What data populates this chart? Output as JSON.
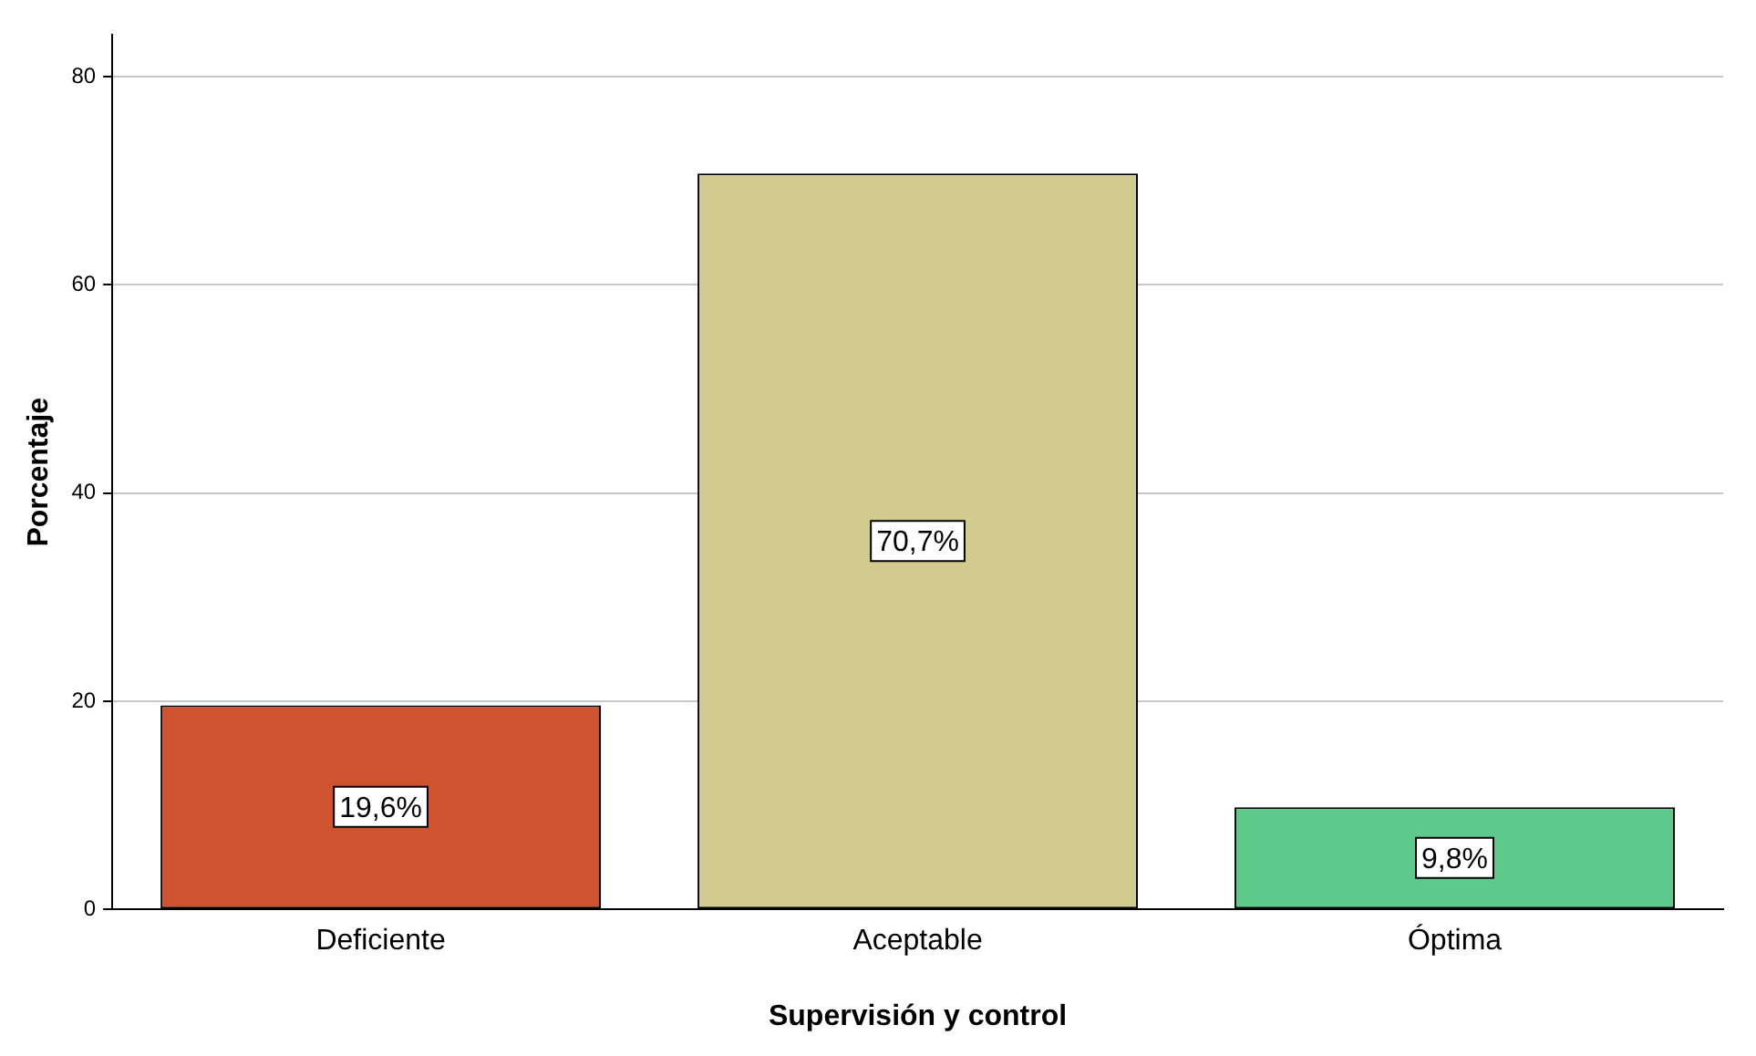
{
  "chart_data": {
    "type": "bar",
    "xlabel": "Supervisión y control",
    "ylabel": "Porcentaje",
    "categories": [
      "Deficiente",
      "Aceptable",
      "Óptima"
    ],
    "values": [
      19.6,
      70.7,
      9.8
    ],
    "colors": [
      "#d05330",
      "#d1cb8f",
      "#5dc98b"
    ],
    "value_labels": [
      "19,6%",
      "70,7%",
      "9,8%"
    ],
    "ylim": [
      0,
      84
    ],
    "yticks": [
      0,
      20,
      40,
      60,
      80
    ],
    "grid": "y",
    "legend": false
  }
}
